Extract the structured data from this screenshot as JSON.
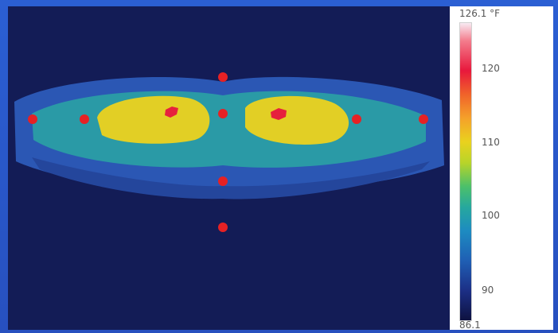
{
  "scale": {
    "max_label": "126.1 °F",
    "min_label": "86.1",
    "ticks": [
      {
        "label": "120",
        "value": 120
      },
      {
        "label": "110",
        "value": 110
      },
      {
        "label": "100",
        "value": 100
      },
      {
        "label": "90",
        "value": 90
      }
    ],
    "max_value": 126.1,
    "min_value": 86.1
  },
  "colors": {
    "background": "#131c56",
    "outer_ring": "#2b57b4",
    "middle_ring": "#2a9aa6",
    "warm_zone": "#e2cf25",
    "hot_spot": "#e6213d",
    "marker": "#e62124",
    "frame": "#2a56c9"
  },
  "image": {
    "subject": "thermal image"
  }
}
